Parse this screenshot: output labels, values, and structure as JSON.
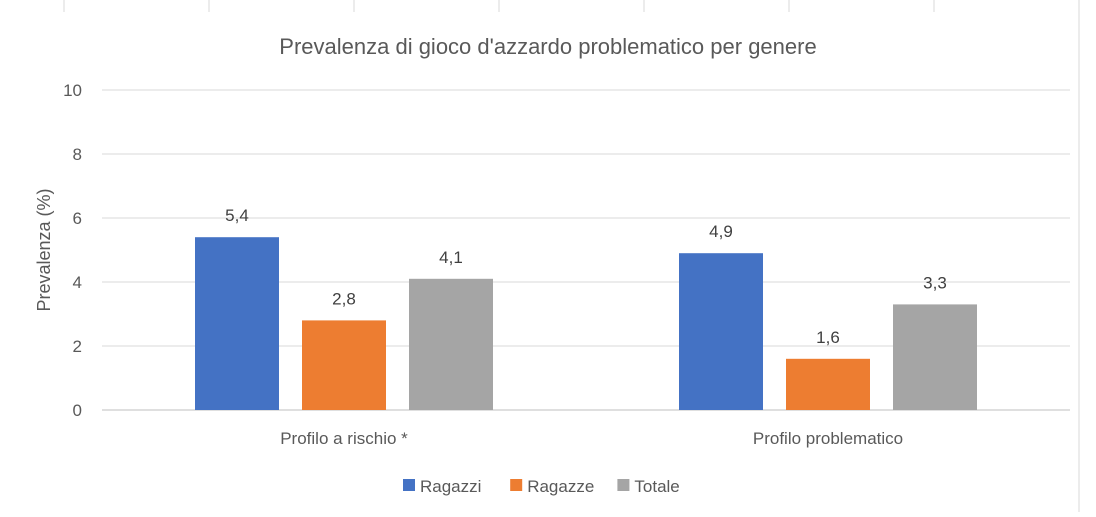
{
  "chart_data": {
    "type": "bar",
    "title": "Prevalenza di gioco d'azzardo problematico per genere",
    "xlabel": "",
    "ylabel": "Prevalenza (%)",
    "ylim": [
      0,
      10
    ],
    "yticks": [
      0,
      2,
      4,
      6,
      8,
      10
    ],
    "categories": [
      "Profilo a rischio *",
      "Profilo problematico"
    ],
    "series": [
      {
        "name": "Ragazzi",
        "values": [
          5.4,
          4.9
        ],
        "labels": [
          "5,4",
          "4,9"
        ],
        "color": "#4472C4"
      },
      {
        "name": "Ragazze",
        "values": [
          2.8,
          1.6
        ],
        "labels": [
          "2,8",
          "1,6"
        ],
        "color": "#ED7D31"
      },
      {
        "name": "Totale",
        "values": [
          4.1,
          3.3
        ],
        "labels": [
          "4,1",
          "3,3"
        ],
        "color": "#A5A5A5"
      }
    ],
    "grid": true,
    "legend_position": "bottom"
  }
}
